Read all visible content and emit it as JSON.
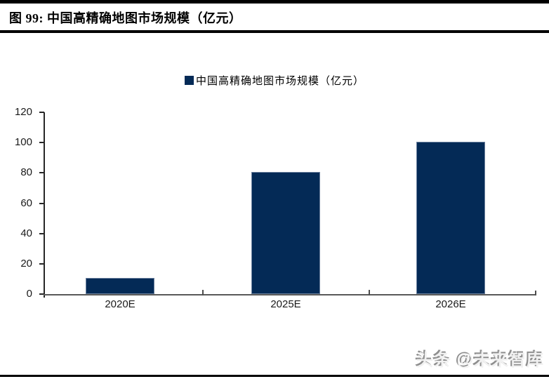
{
  "header": {
    "title": "图 99:  中国高精确地图市场规模（亿元）"
  },
  "legend": {
    "label": "中国高精确地图市场规模（亿元）",
    "swatch_color": "#042a56"
  },
  "chart_data": {
    "type": "bar",
    "title": "中国高精确地图市场规模（亿元）",
    "categories": [
      "2020E",
      "2025E",
      "2026E"
    ],
    "values": [
      10.5,
      80.5,
      100.5
    ],
    "unit": "亿元",
    "xlabel": "",
    "ylabel": "",
    "ylim": [
      0,
      120
    ],
    "yticks": [
      0,
      20,
      40,
      60,
      80,
      100,
      120
    ],
    "grid": false,
    "legend_entries": [
      "中国高精确地图市场规模（亿元）"
    ],
    "legend_position": "top-center",
    "bar_color": "#042a56",
    "axis_color": "#595959"
  },
  "watermark": {
    "text": "头条 @未来智库"
  }
}
